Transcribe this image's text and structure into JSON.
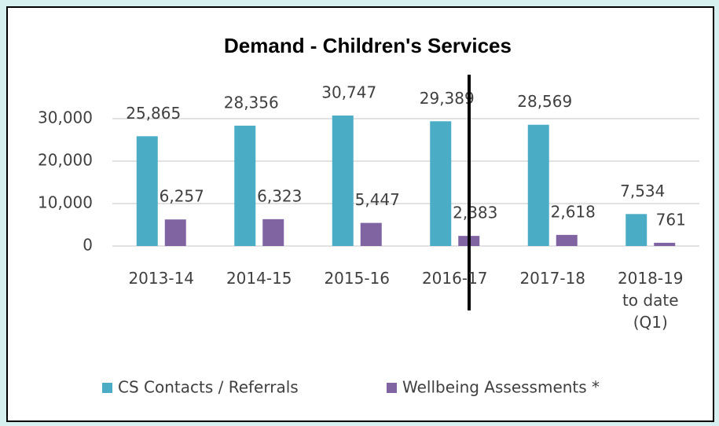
{
  "chart_data": {
    "type": "bar",
    "title": "Demand - Children's Services",
    "categories": [
      "2013-14",
      "2014-15",
      "2015-16",
      "2016-17",
      "2017-18",
      "2018-19 to date (Q1)"
    ],
    "series": [
      {
        "name": "CS Contacts / Referrals",
        "color": "#4bacc6",
        "values": [
          25865,
          28356,
          30747,
          29389,
          28569,
          7534
        ],
        "value_labels": [
          "25,865",
          "28,356",
          "30,747",
          "29,389",
          "28,569",
          "7,534"
        ]
      },
      {
        "name": "Wellbeing Assessments *",
        "color": "#8064a2",
        "values": [
          6257,
          6323,
          5447,
          2383,
          2618,
          761
        ],
        "value_labels": [
          "6,257",
          "6,323",
          "5,447",
          "2,383",
          "2,618",
          "761"
        ]
      }
    ],
    "ylim": [
      0,
      35000
    ],
    "yticks": [
      0,
      {
        "value": 10000,
        "label": "10,000"
      },
      {
        "value": 20000,
        "label": "20,000"
      },
      {
        "value": 30000,
        "label": "30,000"
      }
    ],
    "grid": true,
    "legend": "bottom"
  }
}
